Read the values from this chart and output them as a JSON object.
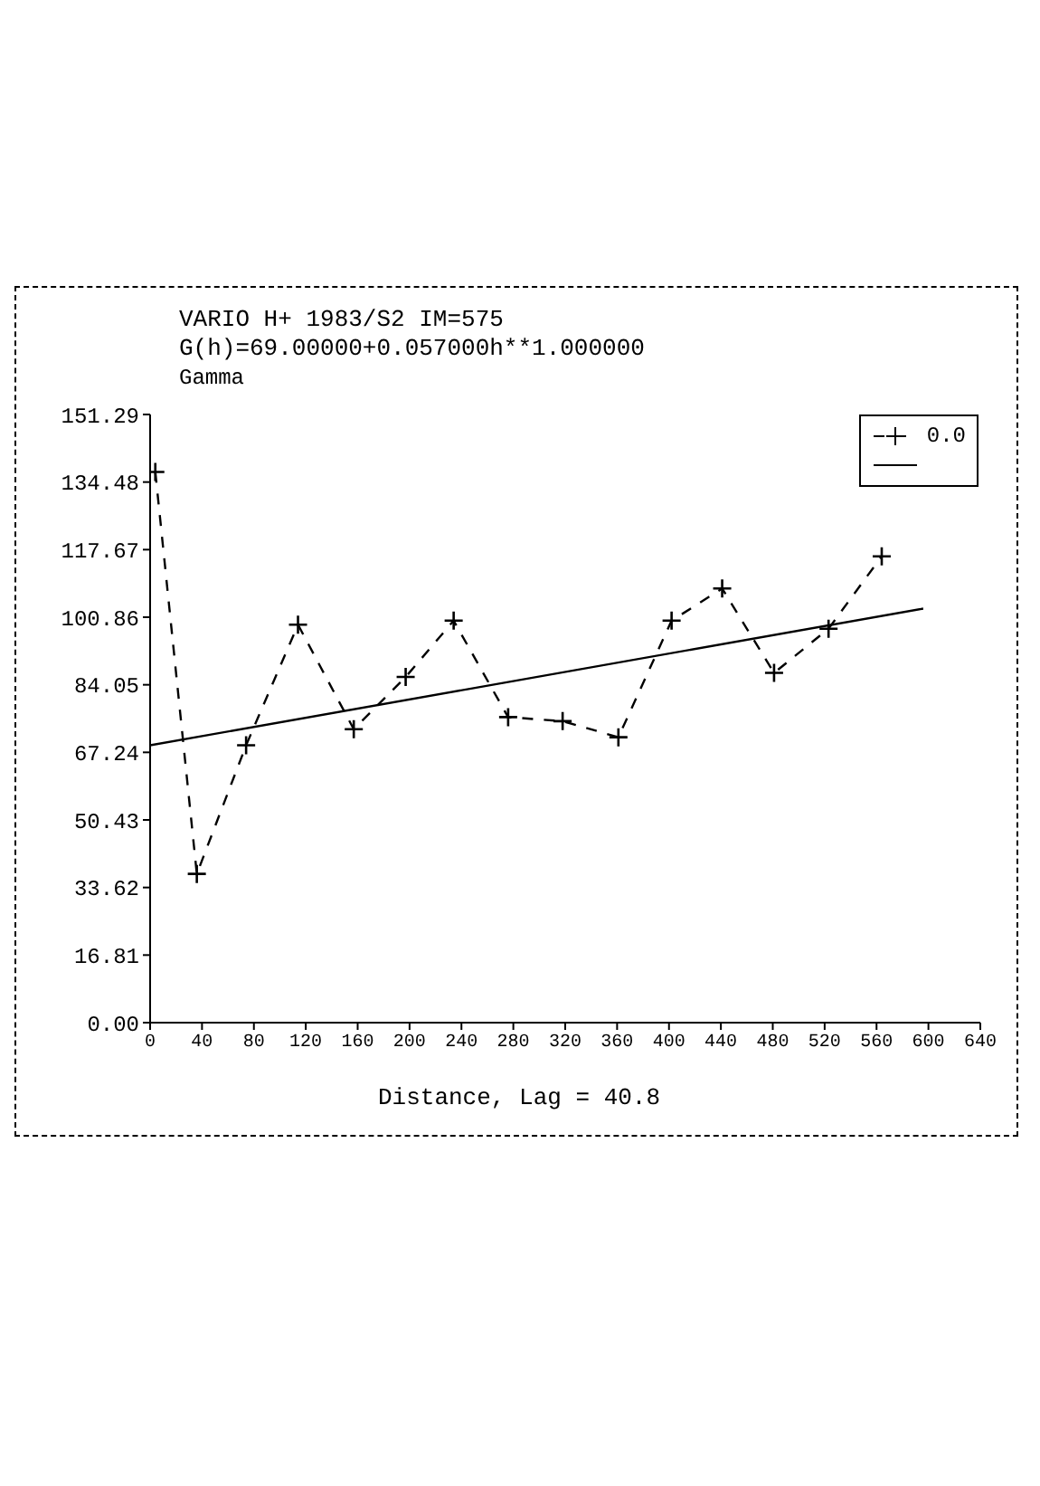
{
  "chart_data": {
    "type": "line",
    "title": "VARIO H+ 1983/S2 IM=575",
    "subtitle": "G(h)=69.00000+0.057000h**1.000000",
    "ylabel": "Gamma",
    "xlabel": "Distance, Lag = 40.8",
    "xlim": [
      0,
      640
    ],
    "xticks": [
      0,
      40,
      80,
      120,
      160,
      200,
      240,
      280,
      320,
      360,
      400,
      440,
      480,
      520,
      560,
      600,
      640
    ],
    "ylim": [
      0,
      151.29
    ],
    "yticks": [
      {
        "value": 0,
        "label": "0.00"
      },
      16.81,
      33.62,
      50.43,
      67.24,
      84.05,
      100.86,
      117.67,
      134.48,
      151.29
    ],
    "legend": "top right",
    "series": [
      {
        "name": "0.0",
        "color": "#000000",
        "marker": "cross",
        "line_style": "dashed",
        "x": [
          4,
          36,
          74,
          114,
          157,
          197,
          234,
          276,
          318,
          361,
          402,
          441,
          481,
          523,
          564
        ],
        "values": [
          137,
          37,
          69,
          99,
          73,
          86,
          100,
          76,
          75,
          71,
          100,
          108,
          87,
          98,
          116
        ]
      },
      {
        "color": "#000000",
        "marker": "none",
        "line_style": "solid",
        "x": [
          0,
          596
        ],
        "values": [
          69,
          103
        ]
      }
    ]
  }
}
